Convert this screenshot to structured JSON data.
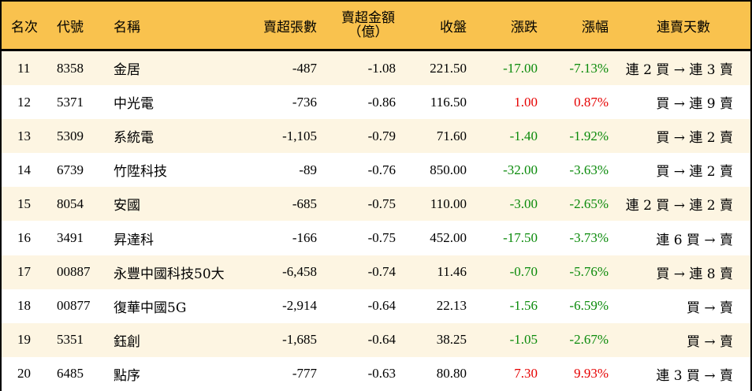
{
  "table": {
    "headers": {
      "rank": "名次",
      "code": "代號",
      "name": "名稱",
      "net_sell_volume": "賣超張數",
      "net_sell_amount_line1": "賣超金額",
      "net_sell_amount_line2": "（億）",
      "close": "收盤",
      "change": "漲跌",
      "change_pct": "漲幅",
      "streak": "連賣天數"
    },
    "colors": {
      "header_bg": "#f9c24e",
      "odd_row_bg": "#fdf5e2",
      "even_row_bg": "#ffffff",
      "up": "#e60000",
      "down": "#0a8a0a"
    },
    "rows": [
      {
        "rank": "11",
        "code": "8358",
        "name": "金居",
        "volume": "-487",
        "amount": "-1.08",
        "close": "221.50",
        "change": "-17.00",
        "pct": "-7.13%",
        "streak": "連 2 買 → 連 3 賣",
        "dir": "down"
      },
      {
        "rank": "12",
        "code": "5371",
        "name": "中光電",
        "volume": "-736",
        "amount": "-0.86",
        "close": "116.50",
        "change": "1.00",
        "pct": "0.87%",
        "streak": "買 → 連 9 賣",
        "dir": "up"
      },
      {
        "rank": "13",
        "code": "5309",
        "name": "系統電",
        "volume": "-1,105",
        "amount": "-0.79",
        "close": "71.60",
        "change": "-1.40",
        "pct": "-1.92%",
        "streak": "買 → 連 2 賣",
        "dir": "down"
      },
      {
        "rank": "14",
        "code": "6739",
        "name": "竹陞科技",
        "volume": "-89",
        "amount": "-0.76",
        "close": "850.00",
        "change": "-32.00",
        "pct": "-3.63%",
        "streak": "買 → 連 2 賣",
        "dir": "down"
      },
      {
        "rank": "15",
        "code": "8054",
        "name": "安國",
        "volume": "-685",
        "amount": "-0.75",
        "close": "110.00",
        "change": "-3.00",
        "pct": "-2.65%",
        "streak": "連 2 買 → 連 2 賣",
        "dir": "down"
      },
      {
        "rank": "16",
        "code": "3491",
        "name": "昇達科",
        "volume": "-166",
        "amount": "-0.75",
        "close": "452.00",
        "change": "-17.50",
        "pct": "-3.73%",
        "streak": "連 6 買 → 賣",
        "dir": "down"
      },
      {
        "rank": "17",
        "code": "00887",
        "name": "永豐中國科技50大",
        "volume": "-6,458",
        "amount": "-0.74",
        "close": "11.46",
        "change": "-0.70",
        "pct": "-5.76%",
        "streak": "買 → 連 8 賣",
        "dir": "down"
      },
      {
        "rank": "18",
        "code": "00877",
        "name": "復華中國5G",
        "volume": "-2,914",
        "amount": "-0.64",
        "close": "22.13",
        "change": "-1.56",
        "pct": "-6.59%",
        "streak": "買 → 賣",
        "dir": "down"
      },
      {
        "rank": "19",
        "code": "5351",
        "name": "鈺創",
        "volume": "-1,685",
        "amount": "-0.64",
        "close": "38.25",
        "change": "-1.05",
        "pct": "-2.67%",
        "streak": "買 → 賣",
        "dir": "down"
      },
      {
        "rank": "20",
        "code": "6485",
        "name": "點序",
        "volume": "-777",
        "amount": "-0.63",
        "close": "80.80",
        "change": "7.30",
        "pct": "9.93%",
        "streak": "連 3 買 → 賣",
        "dir": "up"
      }
    ]
  }
}
